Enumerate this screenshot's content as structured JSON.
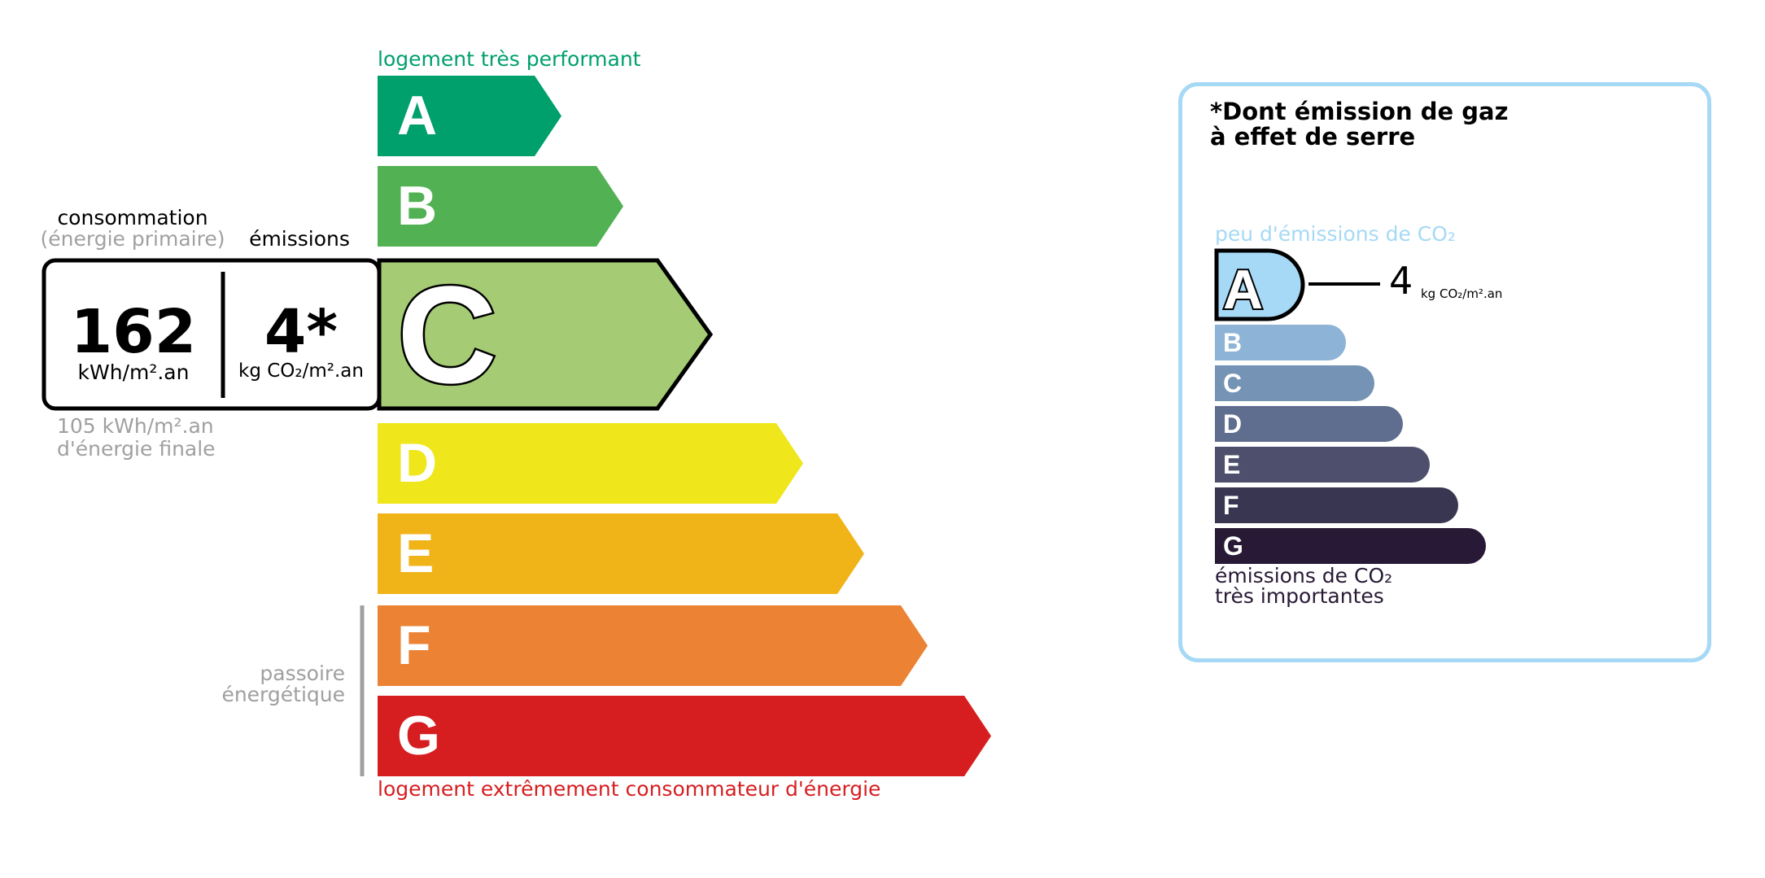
{
  "energy": {
    "top_label": "logement très performant",
    "bottom_label": "logement extrêmement consommateur d'énergie",
    "passoire_label": [
      "passoire",
      "énergétique"
    ],
    "classes": [
      {
        "letter": "A",
        "color": "#00a06d"
      },
      {
        "letter": "B",
        "color": "#51b153"
      },
      {
        "letter": "C",
        "color": "#a5cc74"
      },
      {
        "letter": "D",
        "color": "#f0e61c"
      },
      {
        "letter": "E",
        "color": "#f0b418"
      },
      {
        "letter": "F",
        "color": "#eb8234"
      },
      {
        "letter": "G",
        "color": "#d61e21"
      }
    ],
    "current_class": "C",
    "consumption_header": "consommation",
    "consumption_subheader": "(énergie primaire)",
    "emissions_header": "émissions",
    "consumption_value": "162",
    "consumption_unit": "kWh/m².an",
    "emissions_value": "4*",
    "emissions_unit": "kg CO₂/m².an",
    "final_energy": "105 kWh/m².an",
    "final_energy_label": "d'énergie finale"
  },
  "ghg": {
    "title_line1": "*Dont émission de gaz",
    "title_line2": "à effet de serre",
    "top_label": "peu d'émissions de CO₂",
    "bottom_label_line1": "émissions de CO₂",
    "bottom_label_line2": "très importantes",
    "current_class": "A",
    "value": "4",
    "unit": "kg CO₂/m².an",
    "border_color": "#a6d9f5",
    "classes": [
      {
        "letter": "A",
        "color": "#a6d9f5"
      },
      {
        "letter": "B",
        "color": "#8db3d6"
      },
      {
        "letter": "C",
        "color": "#7593b5"
      },
      {
        "letter": "D",
        "color": "#5f6d8f"
      },
      {
        "letter": "E",
        "color": "#4d4f6d"
      },
      {
        "letter": "F",
        "color": "#393651"
      },
      {
        "letter": "G",
        "color": "#281a36"
      }
    ]
  }
}
